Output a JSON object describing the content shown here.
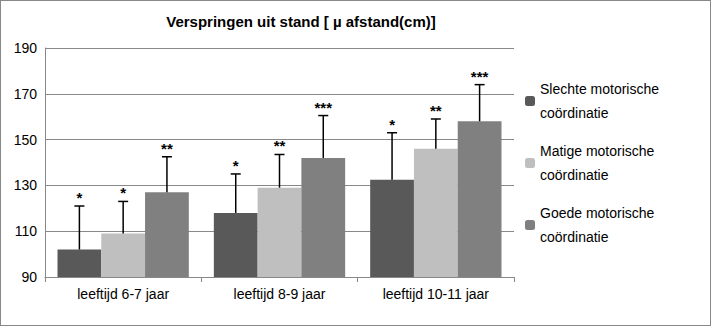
{
  "chart_data": {
    "type": "bar",
    "title": "Verspringen uit stand [ µ afstand(cm)]",
    "categories": [
      "leeftijd 6-7 jaar",
      "leeftijd 8-9 jaar",
      "leeftijd 10-11 jaar"
    ],
    "series": [
      {
        "name": "Slechte motorische coördinatie",
        "color": "#595959",
        "values": [
          102,
          118,
          132.5
        ],
        "error": [
          19,
          17,
          20.5
        ],
        "annotations": [
          "*",
          "*",
          "*"
        ]
      },
      {
        "name": "Matige motorische coördinatie",
        "color": "#bfbfbf",
        "values": [
          109,
          129,
          146
        ],
        "error": [
          14,
          14.5,
          13
        ],
        "annotations": [
          "*",
          "**",
          "**"
        ]
      },
      {
        "name": "Goede motorische coördinatie",
        "color": "#808080",
        "values": [
          127,
          142,
          158
        ],
        "error": [
          15.5,
          18.5,
          16
        ],
        "annotations": [
          "**",
          "***",
          "***"
        ]
      }
    ],
    "ylim": [
      90,
      190
    ],
    "yticks": [
      90,
      110,
      130,
      150,
      170,
      190
    ],
    "grid": true,
    "legend": "right"
  }
}
